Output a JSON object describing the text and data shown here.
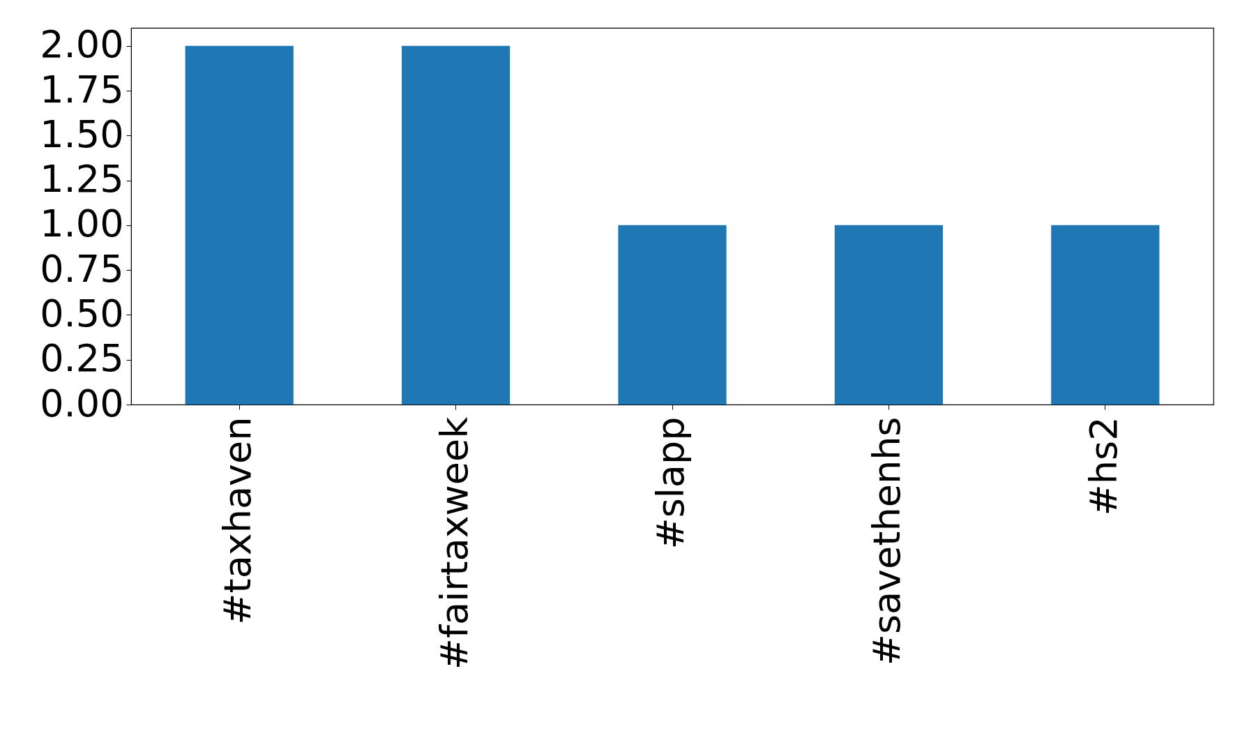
{
  "chart_data": {
    "type": "bar",
    "categories": [
      "#taxhaven",
      "#fairtaxweek",
      "#slapp",
      "#savethenhs",
      "#hs2"
    ],
    "values": [
      2,
      2,
      1,
      1,
      1
    ],
    "color": "#1f77b4",
    "ylim": [
      0,
      2.1
    ],
    "yticks": [
      {
        "value": 0,
        "label": "0.00"
      },
      {
        "value": 0.25,
        "label": "0.25"
      },
      {
        "value": 0.5,
        "label": "0.50"
      },
      {
        "value": 0.75,
        "label": "0.75"
      },
      {
        "value": 1,
        "label": "1.00"
      },
      {
        "value": 1.25,
        "label": "1.25"
      },
      {
        "value": 1.5,
        "label": "1.50"
      },
      {
        "value": 1.75,
        "label": "1.75"
      },
      {
        "value": 2,
        "label": "2.00"
      }
    ],
    "grid": false
  }
}
